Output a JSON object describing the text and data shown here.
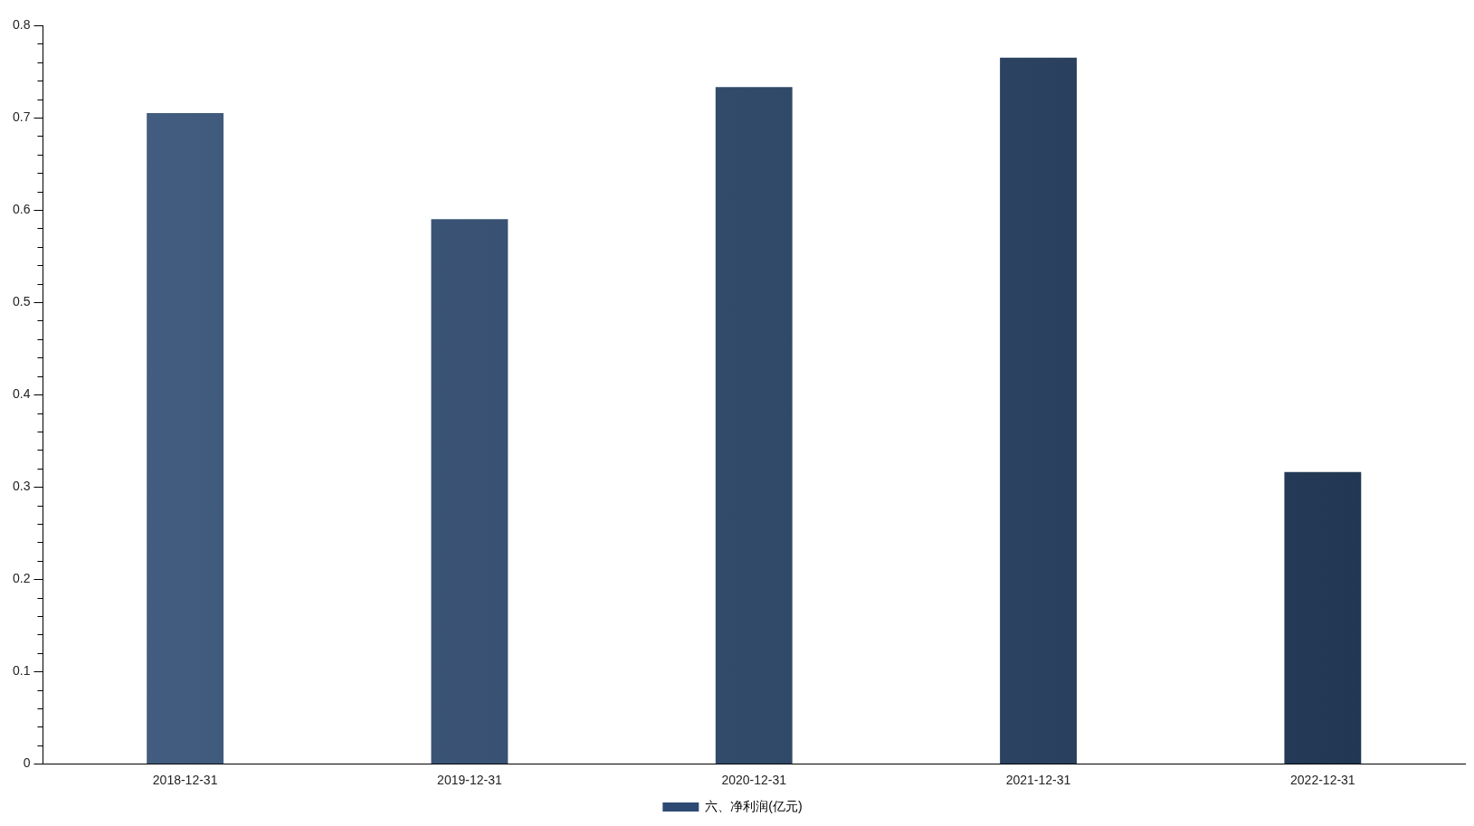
{
  "chart_data": {
    "type": "bar",
    "categories": [
      "2018-12-31",
      "2019-12-31",
      "2020-12-31",
      "2021-12-31",
      "2022-12-31"
    ],
    "series": [
      {
        "name": "六、净利润(亿元)",
        "color": "#2c4a72",
        "values": [
          0.705,
          0.59,
          0.733,
          0.765,
          0.316
        ]
      }
    ],
    "ylim": [
      0,
      0.8
    ],
    "yticks": [
      0,
      {
        "value": 0.02,
        "label": null
      },
      {
        "value": 0.04,
        "label": null
      },
      {
        "value": 0.06,
        "label": null
      },
      {
        "value": 0.08,
        "label": null
      },
      0.1,
      {
        "value": 0.12,
        "label": null
      },
      {
        "value": 0.14,
        "label": null
      },
      {
        "value": 0.16,
        "label": null
      },
      {
        "value": 0.18,
        "label": null
      },
      0.2,
      {
        "value": 0.22,
        "label": null
      },
      {
        "value": 0.24,
        "label": null
      },
      {
        "value": 0.26,
        "label": null
      },
      {
        "value": 0.28,
        "label": null
      },
      0.3,
      {
        "value": 0.32,
        "label": null
      },
      {
        "value": 0.34,
        "label": null
      },
      {
        "value": 0.36,
        "label": null
      },
      {
        "value": 0.38,
        "label": null
      },
      0.4,
      {
        "value": 0.42,
        "label": null
      },
      {
        "value": 0.44,
        "label": null
      },
      {
        "value": 0.46,
        "label": null
      },
      {
        "value": 0.48,
        "label": null
      },
      0.5,
      {
        "value": 0.52,
        "label": null
      },
      {
        "value": 0.54,
        "label": null
      },
      {
        "value": 0.56,
        "label": null
      },
      {
        "value": 0.58,
        "label": null
      },
      0.6,
      {
        "value": 0.62,
        "label": null
      },
      {
        "value": 0.64,
        "label": null
      },
      {
        "value": 0.66,
        "label": null
      },
      {
        "value": 0.68,
        "label": null
      },
      0.7,
      {
        "value": 0.72,
        "label": null
      },
      {
        "value": 0.74,
        "label": null
      },
      {
        "value": 0.76,
        "label": null
      },
      {
        "value": 0.78,
        "label": null
      },
      0.8
    ],
    "grid": false,
    "legend": "bottom"
  }
}
